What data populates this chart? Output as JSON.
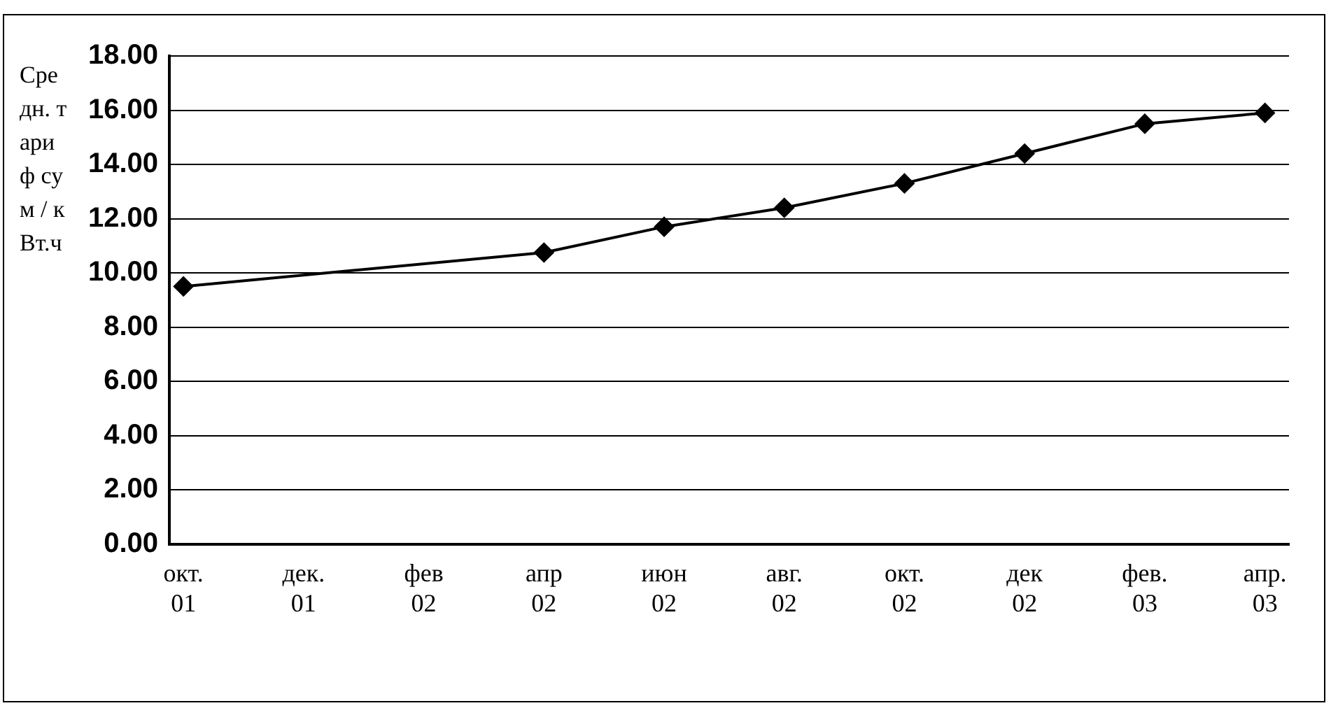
{
  "chart_data": {
    "type": "line",
    "ylabel": "Средн. тариф сум / кВт.ч",
    "x": [
      "2001-10",
      "2002-04",
      "2002-06",
      "2002-08",
      "2002-10",
      "2002-12",
      "2003-02",
      "2003-04"
    ],
    "values": [
      9.5,
      10.75,
      11.7,
      12.4,
      13.3,
      14.4,
      15.5,
      15.9
    ],
    "color": "#000000",
    "marker": "diamond",
    "line_style": "solid",
    "grid": "y",
    "legend": false,
    "ylim": [
      0,
      18
    ],
    "yticks": [
      {
        "value": 0,
        "label": "0.00"
      },
      {
        "value": 2,
        "label": "2.00"
      },
      {
        "value": 4,
        "label": "4.00"
      },
      {
        "value": 6,
        "label": "6.00"
      },
      {
        "value": 8,
        "label": "8.00"
      },
      {
        "value": 10,
        "label": "10.00"
      },
      {
        "value": 12,
        "label": "12.00"
      },
      {
        "value": 14,
        "label": "14.00"
      },
      {
        "value": 16,
        "label": "16.00"
      },
      {
        "value": 18,
        "label": "18.00"
      }
    ],
    "xlim": [
      "2001-09-24",
      "2003-04-13"
    ],
    "xticks": [
      {
        "value": "2001-10",
        "label": "окт. 01"
      },
      {
        "value": "2001-12",
        "label": "дек. 01"
      },
      {
        "value": "2002-02",
        "label": "фев 02"
      },
      {
        "value": "2002-04",
        "label": "апр 02"
      },
      {
        "value": "2002-06",
        "label": "июн 02"
      },
      {
        "value": "2002-08",
        "label": "авг. 02"
      },
      {
        "value": "2002-10",
        "label": "окт. 02"
      },
      {
        "value": "2002-12",
        "label": "дек 02"
      },
      {
        "value": "2003-02",
        "label": "фев. 03"
      },
      {
        "value": "2003-04",
        "label": "апр. 03"
      }
    ]
  }
}
